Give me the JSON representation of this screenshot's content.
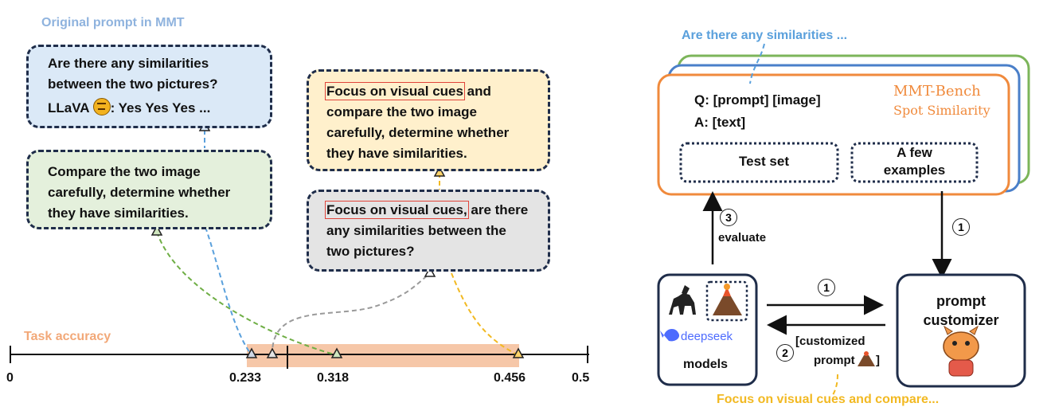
{
  "left": {
    "original_label": "Original prompt in MMT",
    "original_prompt": [
      "Are there any similarities",
      "between the two pictures?"
    ],
    "llava_name": "LLaVA",
    "llava_answer": ":  Yes Yes Yes ...",
    "green_prompt": [
      "Compare the two image",
      "carefully, determine whether",
      "they have similarities."
    ],
    "yellow_prompt": {
      "hl": "Focus on visual cues",
      "rest1": " and",
      "lines": [
        "compare the two image",
        "carefully, determine whether",
        "they have similarities."
      ]
    },
    "gray_prompt": {
      "hl": "Focus on visual cues,",
      "rest1": " are there",
      "lines": [
        "any similarities between the",
        "two pictures?"
      ]
    },
    "task_label": "Task accuracy",
    "axis_ticks": [
      "0",
      "0.233",
      "0.318",
      "0.456",
      "0.5"
    ],
    "colors": {
      "blue_box": "#dbe9f7",
      "green_box": "#e4f0dc",
      "yellow_box": "#fff0cc",
      "gray_box": "#e4e4e4",
      "accuracy_band": "#f6c7a8",
      "blue": "#5aa0dc",
      "green": "#6fae45",
      "gray": "#9a9a9a",
      "yellow": "#f2b922",
      "orange": "#f08a3c"
    }
  },
  "right": {
    "top_label": "Are there any similarities ...",
    "q_line": "Q: [prompt] [image]",
    "a_line": "A: [text]",
    "bench_title": "MMT-Bench",
    "bench_sub": "Spot Similarity",
    "test_set": "Test set",
    "few_examples": [
      "A few",
      "examples"
    ],
    "step3_num": "3",
    "step3_label": "evaluate",
    "step1_num": "1",
    "deepseek": "deepseek",
    "models": "models",
    "customizer": [
      "prompt",
      "customizer"
    ],
    "step2_num": "2",
    "customized": [
      "[customized",
      "prompt",
      "]"
    ],
    "bottom_label": "Focus on visual cues and compare..."
  }
}
